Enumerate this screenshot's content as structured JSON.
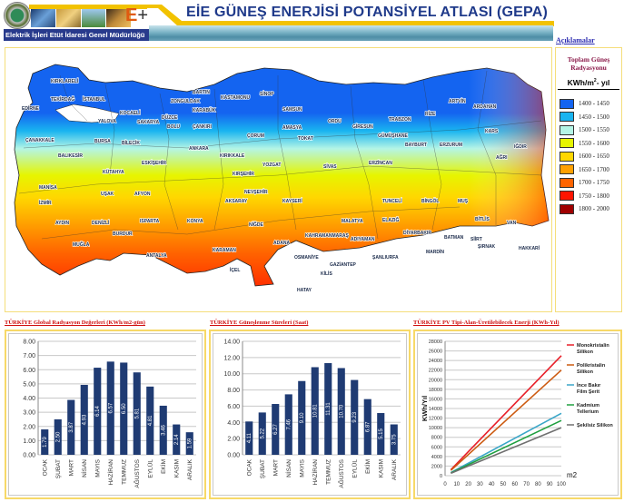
{
  "header": {
    "title": "EİE GÜNEŞ ENERJİSİ POTANSİYEL ATLASI (GEPA)",
    "org_name": "Elektrik İşleri Etüt İdaresi Genel Müdürlüğü",
    "logo_mark": "E",
    "logo_plus": "+",
    "link_explanations": "Açıklamalar"
  },
  "map": {
    "description": "Turkey total solar radiation map",
    "provinces": [
      "KIRKLARELİ",
      "EDİRNE",
      "TEKİRDAĞ",
      "İSTANBUL",
      "ÇANAKKALE",
      "YALOVA",
      "KOCAELİ",
      "SAKARYA",
      "DÜZCE",
      "BOLU",
      "ZONGULDAK",
      "BARTIN",
      "KARABÜK",
      "KASTAMONU",
      "SİNOP",
      "SAMSUN",
      "AMASYA",
      "TOKAT",
      "ORDU",
      "GİRESUN",
      "TRABZON",
      "RİZE",
      "ARTVİN",
      "ARDAHAN",
      "KARS",
      "IĞDIR",
      "BALIKESİR",
      "BURSA",
      "BİLECİK",
      "ESKİŞEHİR",
      "ANKARA",
      "ÇANKIRI",
      "ÇORUM",
      "KIRIKKALE",
      "YOZGAT",
      "SİVAS",
      "KIRŞEHİR",
      "GÜMÜŞHANE",
      "BAYBURT",
      "ERZURUM",
      "ERZİNCAN",
      "AĞRI",
      "MANİSA",
      "İZMİR",
      "UŞAK",
      "KÜTAHYA",
      "AFYON",
      "AYDIN",
      "DENİZLİ",
      "MUĞLA",
      "BURDUR",
      "ISPARTA",
      "ANTALYA",
      "KONYA",
      "AKSARAY",
      "NEVŞEHİR",
      "NİĞDE",
      "KARAMAN",
      "İÇEL",
      "KAYSERİ",
      "ADANA",
      "OSMANİYE",
      "HATAY",
      "KAHRAMANMARAŞ",
      "GAZİANTEP",
      "KİLİS",
      "ADIYAMAN",
      "MALATYA",
      "ŞANLIURFA",
      "ELAZIĞ",
      "TUNCELİ",
      "BİNGÖL",
      "MUŞ",
      "DİYARBAKIR",
      "BATMAN",
      "SİİRT",
      "MARDİN",
      "BİTLİS",
      "VAN",
      "ŞIRNAK",
      "HAKKARİ"
    ]
  },
  "legend": {
    "title_line1": "Toplam Güneş",
    "title_line2": "Radyasyonu",
    "unit_pre": "KWh/m",
    "unit_sup": "2",
    "unit_post": "- yıl",
    "items": [
      {
        "label": "1400 - 1450",
        "color": "#1464f0"
      },
      {
        "label": "1450 - 1500",
        "color": "#19b4f0"
      },
      {
        "label": "1500 - 1550",
        "color": "#b4f5e6"
      },
      {
        "label": "1550 - 1600",
        "color": "#e6f500"
      },
      {
        "label": "1600 - 1650",
        "color": "#ffd700"
      },
      {
        "label": "1650 - 1700",
        "color": "#ffa000"
      },
      {
        "label": "1700 - 1750",
        "color": "#ff6400"
      },
      {
        "label": "1750 - 1800",
        "color": "#ff1400"
      },
      {
        "label": "1800 - 2000",
        "color": "#a00000"
      }
    ]
  },
  "charts": {
    "radiation_title": "TÜRKİYE Global Radyasyon Değerleri (KWh/m2-gün)",
    "sunshine_title": "TÜRKİYE Güneşlenme Süreleri (Saat)",
    "pv_title": "TÜRKİYE PV Tipi-Alan-Üretilebilecek Enerji (KWh-Yıl)"
  },
  "chart_data": [
    {
      "type": "bar",
      "title": "TÜRKİYE Global Radyasyon Değerleri (KWh/m2-gün)",
      "categories": [
        "OCAK",
        "ŞUBAT",
        "MART",
        "NİSAN",
        "MAYIS",
        "HAZİRAN",
        "TEMMUZ",
        "AĞUSTOS",
        "EYLÜL",
        "EKİM",
        "KASIM",
        "ARALIK"
      ],
      "values": [
        1.79,
        2.5,
        3.87,
        4.93,
        6.14,
        6.57,
        6.5,
        5.81,
        4.81,
        3.46,
        2.14,
        1.59
      ],
      "value_labels": [
        "1.79",
        "2.50",
        "3.87",
        "4.93",
        "6.14",
        "6.57",
        "6.50",
        "5.81",
        "4.81",
        "3.46",
        "2.14",
        "1.59"
      ],
      "ylim": [
        0,
        8
      ],
      "yticks": [
        "0.00",
        "1.00",
        "2.00",
        "3.00",
        "4.00",
        "5.00",
        "6.00",
        "7.00",
        "8.00"
      ],
      "bar_color": "#1f3b73",
      "grid": true
    },
    {
      "type": "bar",
      "title": "TÜRKİYE Güneşlenme Süreleri (Saat)",
      "categories": [
        "OCAK",
        "ŞUBAT",
        "MART",
        "NİSAN",
        "MAYIS",
        "HAZİRAN",
        "TEMMUZ",
        "AĞUSTOS",
        "EYLÜL",
        "EKİM",
        "KASIM",
        "ARALIK"
      ],
      "values": [
        4.11,
        5.22,
        6.27,
        7.46,
        9.1,
        10.81,
        11.31,
        10.7,
        9.23,
        6.87,
        5.15,
        3.75
      ],
      "value_labels": [
        "4.11",
        "5.22",
        "6.27",
        "7.46",
        "9.10",
        "10.81",
        "11.31",
        "10.70",
        "9.23",
        "6.87",
        "5.15",
        "3.75"
      ],
      "ylim": [
        0,
        14
      ],
      "yticks": [
        "0.00",
        "2.00",
        "4.00",
        "6.00",
        "8.00",
        "10.00",
        "12.00",
        "14.00"
      ],
      "bar_color": "#1f3b73",
      "grid": true
    },
    {
      "type": "line",
      "title": "TÜRKİYE PV Tipi-Alan-Üretilebilecek Enerji (KWh-Yıl)",
      "xlabel": "m2",
      "ylabel": "KWh/Yıl",
      "x": [
        5,
        100
      ],
      "xticks": [
        "0",
        "10",
        "20",
        "30",
        "40",
        "50",
        "60",
        "70",
        "80",
        "90",
        "100"
      ],
      "yticks": [
        "0",
        "2000",
        "4000",
        "6000",
        "8000",
        "10000",
        "12000",
        "14000",
        "16000",
        "18000",
        "20000",
        "22000",
        "24000",
        "26000",
        "28000"
      ],
      "ylim": [
        0,
        28000
      ],
      "xlim": [
        0,
        100
      ],
      "legend_position": "right",
      "series": [
        {
          "name": "Monokristalin Silikon",
          "name_l1": "Monokristalin",
          "name_l2": "Silikon",
          "values": [
            1250,
            25000
          ],
          "color": "#e8202a"
        },
        {
          "name": "Polikristalin Silikon",
          "name_l1": "Polikristalin",
          "name_l2": "Silikon",
          "values": [
            1100,
            22000
          ],
          "color": "#cc5a10"
        },
        {
          "name": "İnce Bakır Film Şerit",
          "name_l1": "İnce Bakır",
          "name_l2": "Film Şerit",
          "values": [
            650,
            13000
          ],
          "color": "#3aa6c8"
        },
        {
          "name": "Kadmium Tellerium",
          "name_l1": "Kadmium",
          "name_l2": "Tellerium",
          "values": [
            575,
            11500
          ],
          "color": "#20a040"
        },
        {
          "name": "Şekilsiz Silikon",
          "name_l1": "Şekilsiz Silikon",
          "name_l2": "",
          "values": [
            500,
            10000
          ],
          "color": "#707070"
        }
      ]
    }
  ]
}
